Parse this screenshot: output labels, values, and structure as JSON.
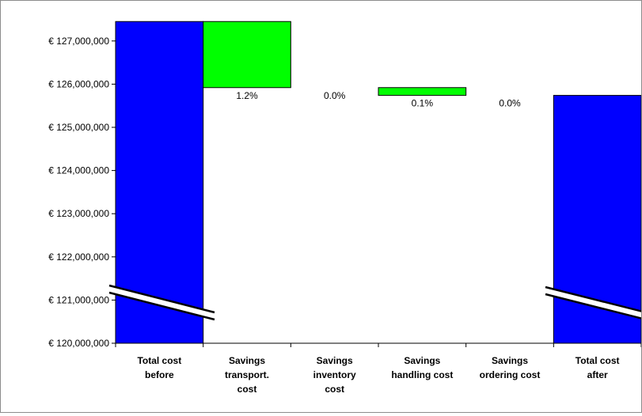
{
  "chart_data": {
    "type": "waterfall",
    "categories": [
      [
        "Total cost",
        "before"
      ],
      [
        "Savings",
        "transport.",
        "cost"
      ],
      [
        "Savings",
        "inventory",
        "cost"
      ],
      [
        "Savings",
        "handling cost"
      ],
      [
        "Savings",
        "ordering cost"
      ],
      [
        "Total cost",
        "after"
      ]
    ],
    "bars": [
      {
        "kind": "total",
        "low": 120000000,
        "high": 127450000,
        "label": ""
      },
      {
        "kind": "saving",
        "low": 125920000,
        "high": 127450000,
        "label": "1.2%"
      },
      {
        "kind": "saving",
        "low": 125920000,
        "high": 125920000,
        "label": "0.0%"
      },
      {
        "kind": "saving",
        "low": 125740000,
        "high": 125920000,
        "label": "0.1%"
      },
      {
        "kind": "saving",
        "low": 125740000,
        "high": 125740000,
        "label": "0.0%"
      },
      {
        "kind": "total",
        "low": 120000000,
        "high": 125740000,
        "label": ""
      }
    ],
    "yticks": [
      "€ 120,000,000",
      "€ 121,000,000",
      "€ 122,000,000",
      "€ 123,000,000",
      "€ 124,000,000",
      "€ 125,000,000",
      "€ 126,000,000",
      "€ 127,000,000"
    ],
    "ytick_values": [
      120000000,
      121000000,
      122000000,
      123000000,
      124000000,
      125000000,
      126000000,
      127000000
    ],
    "ylim": [
      120000000,
      127450000
    ],
    "axis_break": true,
    "grid": false,
    "colors": {
      "total": "#0000ff",
      "saving": "#00ff00",
      "outline": "#000000"
    }
  }
}
